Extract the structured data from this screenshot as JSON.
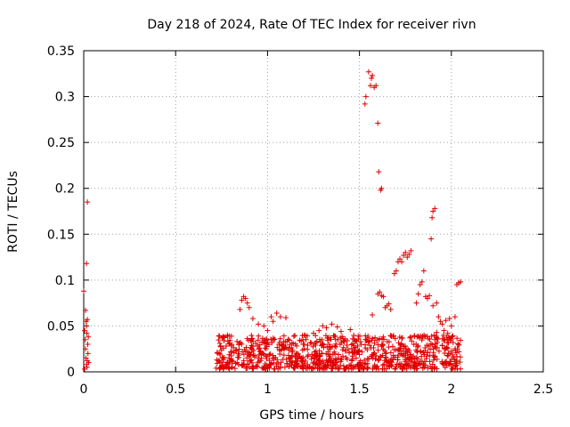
{
  "chart_data": {
    "type": "scatter",
    "title": "Day 218 of 2024, Rate Of TEC Index for receiver rivn",
    "xlabel": "GPS time / hours",
    "ylabel": "ROTI / TECUs",
    "xlim": [
      0,
      2.5
    ],
    "ylim": [
      0,
      0.35
    ],
    "xticks": [
      "0",
      "0.5",
      "1",
      "1.5",
      "2",
      "2.5"
    ],
    "yticks": [
      "0",
      "0.05",
      "0.1",
      "0.15",
      "0.2",
      "0.25",
      "0.3",
      "0.35"
    ],
    "grid": true,
    "marker": "+",
    "color": "#e00000",
    "series": [
      {
        "name": "ROTI",
        "points": [
          [
            0.0,
            0.088
          ],
          [
            0.005,
            0.045
          ],
          [
            0.008,
            0.035
          ],
          [
            0.01,
            0.025
          ],
          [
            0.01,
            0.067
          ],
          [
            0.012,
            0.015
          ],
          [
            0.013,
            0.055
          ],
          [
            0.015,
            0.118
          ],
          [
            0.015,
            0.008
          ],
          [
            0.017,
            0.042
          ],
          [
            0.018,
            0.005
          ],
          [
            0.02,
            0.185
          ],
          [
            0.02,
            0.012
          ],
          [
            0.02,
            0.057
          ],
          [
            0.022,
            0.03
          ],
          [
            0.023,
            0.02
          ],
          [
            0.025,
            0.038
          ],
          [
            0.027,
            0.01
          ],
          [
            0.005,
            0.003
          ],
          [
            0.015,
            0.05
          ],
          [
            0.86,
            0.078
          ],
          [
            0.87,
            0.082
          ],
          [
            0.88,
            0.08
          ],
          [
            0.89,
            0.075
          ],
          [
            0.9,
            0.07
          ],
          [
            0.85,
            0.068
          ],
          [
            0.92,
            0.058
          ],
          [
            0.95,
            0.052
          ],
          [
            1.0,
            0.045
          ],
          [
            1.02,
            0.06
          ],
          [
            1.05,
            0.064
          ],
          [
            1.07,
            0.06
          ],
          [
            1.1,
            0.059
          ],
          [
            1.03,
            0.055
          ],
          [
            0.98,
            0.05
          ],
          [
            1.28,
            0.045
          ],
          [
            1.3,
            0.05
          ],
          [
            1.32,
            0.048
          ],
          [
            1.35,
            0.052
          ],
          [
            1.38,
            0.049
          ],
          [
            1.25,
            0.042
          ],
          [
            1.4,
            0.044
          ],
          [
            1.45,
            0.046
          ],
          [
            1.2,
            0.04
          ],
          [
            1.53,
            0.292
          ],
          [
            1.535,
            0.3
          ],
          [
            1.55,
            0.327
          ],
          [
            1.56,
            0.312
          ],
          [
            1.565,
            0.32
          ],
          [
            1.57,
            0.323
          ],
          [
            1.58,
            0.31
          ],
          [
            1.59,
            0.312
          ],
          [
            1.6,
            0.271
          ],
          [
            1.605,
            0.218
          ],
          [
            1.615,
            0.198
          ],
          [
            1.62,
            0.2
          ],
          [
            1.57,
            0.062
          ],
          [
            1.6,
            0.085
          ],
          [
            1.61,
            0.087
          ],
          [
            1.62,
            0.083
          ],
          [
            1.63,
            0.082
          ],
          [
            1.64,
            0.07
          ],
          [
            1.65,
            0.072
          ],
          [
            1.66,
            0.074
          ],
          [
            1.67,
            0.068
          ],
          [
            1.69,
            0.107
          ],
          [
            1.7,
            0.11
          ],
          [
            1.71,
            0.12
          ],
          [
            1.72,
            0.123
          ],
          [
            1.73,
            0.12
          ],
          [
            1.74,
            0.127
          ],
          [
            1.75,
            0.13
          ],
          [
            1.76,
            0.125
          ],
          [
            1.77,
            0.128
          ],
          [
            1.78,
            0.132
          ],
          [
            1.81,
            0.075
          ],
          [
            1.82,
            0.085
          ],
          [
            1.83,
            0.095
          ],
          [
            1.84,
            0.098
          ],
          [
            1.85,
            0.11
          ],
          [
            1.86,
            0.082
          ],
          [
            1.87,
            0.08
          ],
          [
            1.88,
            0.083
          ],
          [
            1.89,
            0.145
          ],
          [
            1.895,
            0.168
          ],
          [
            1.9,
            0.175
          ],
          [
            1.91,
            0.178
          ],
          [
            1.9,
            0.072
          ],
          [
            1.92,
            0.075
          ],
          [
            1.93,
            0.06
          ],
          [
            1.94,
            0.055
          ],
          [
            1.95,
            0.052
          ],
          [
            1.97,
            0.056
          ],
          [
            1.99,
            0.058
          ],
          [
            2.02,
            0.06
          ],
          [
            2.03,
            0.095
          ],
          [
            2.04,
            0.097
          ],
          [
            2.05,
            0.098
          ],
          [
            2.0,
            0.05
          ],
          [
            1.96,
            0.045
          ],
          [
            1.92,
            0.043
          ],
          [
            1.98,
            0.042
          ]
        ]
      }
    ],
    "dense_band": {
      "x_range": [
        0.72,
        2.05
      ],
      "y_range": [
        0.003,
        0.04
      ],
      "count": 900
    }
  }
}
